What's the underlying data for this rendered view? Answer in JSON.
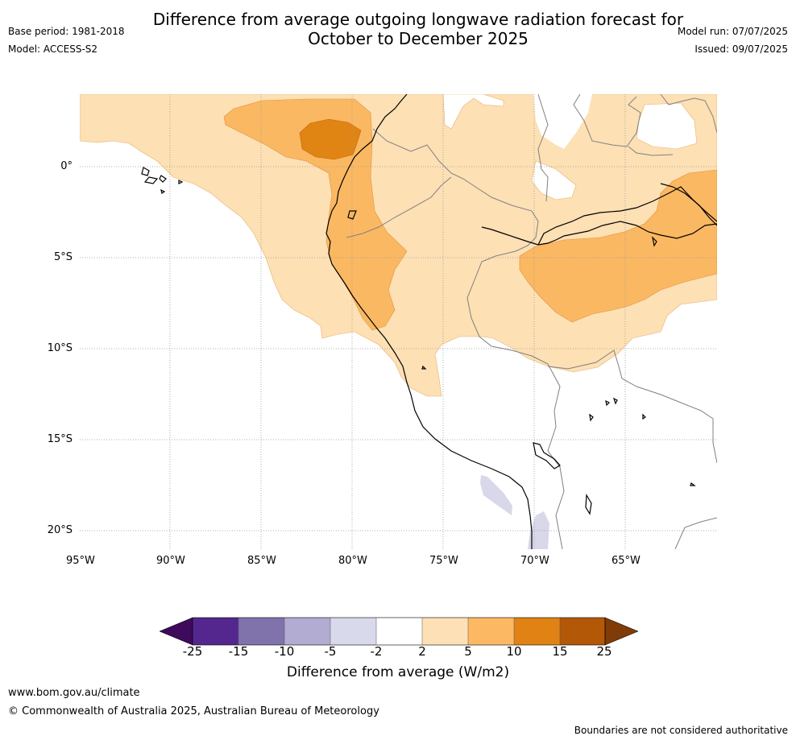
{
  "header": {
    "title_line1": "Difference from average outgoing longwave radiation forecast for",
    "title_line2": "October to December 2025",
    "base_period": "Base period: 1981-2018",
    "model": "Model: ACCESS-S2",
    "model_run": "Model run: 07/07/2025",
    "issued": "Issued: 09/07/2025"
  },
  "map": {
    "lon_labels": [
      "95°W",
      "90°W",
      "85°W",
      "80°W",
      "75°W",
      "70°W",
      "65°W"
    ],
    "lat_labels": [
      "0°",
      "5°S",
      "10°S",
      "15°S",
      "20°S"
    ],
    "colors": {
      "anom_2_5": "#fde0b4",
      "anom_5_10": "#fbb862",
      "anom_10_15": "#e08414",
      "anom_neg_2_5": "#d8d8ea",
      "coast": "#000000",
      "border": "#808080",
      "grid": "#999999"
    }
  },
  "colorbar": {
    "title": "Difference from average (W/m2)",
    "ticks": [
      "-25",
      "-15",
      "-10",
      "-5",
      "-2",
      "2",
      "5",
      "10",
      "15",
      "25"
    ],
    "colors": [
      "#3f0a5c",
      "#54278f",
      "#8073ac",
      "#b2abd2",
      "#d8daeb",
      "#ffffff",
      "#fee0b6",
      "#fdb863",
      "#e08214",
      "#b35806",
      "#7f3b08"
    ]
  },
  "footer": {
    "url": "www.bom.gov.au/climate",
    "copyright": "© Commonwealth of Australia 2025, Australian Bureau of Meteorology",
    "disclaimer": "Boundaries are not considered authoritative"
  }
}
